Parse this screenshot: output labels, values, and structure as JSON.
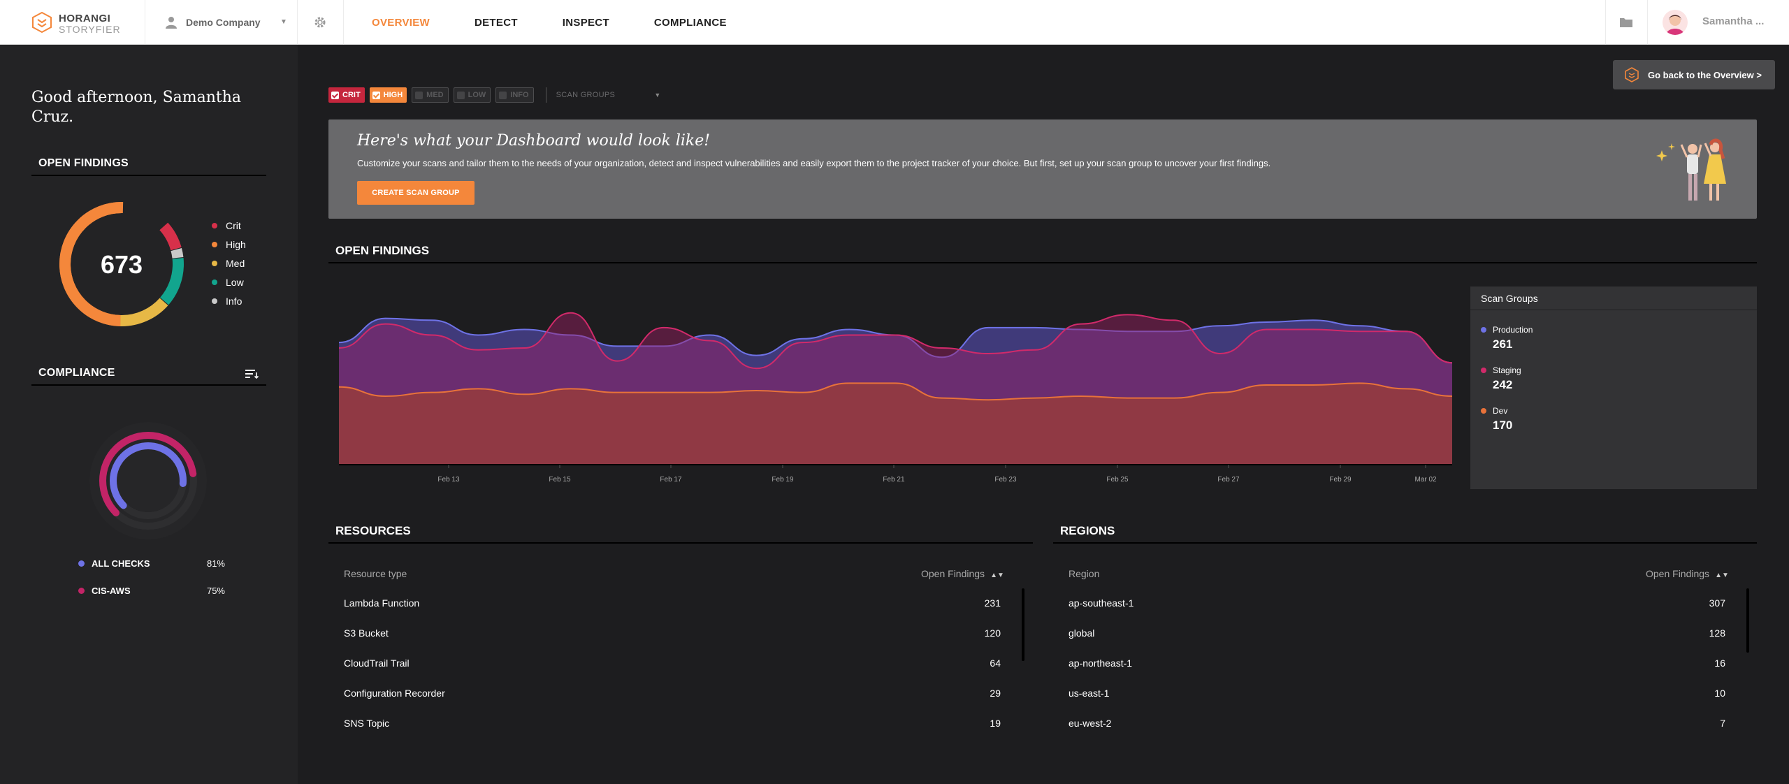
{
  "header": {
    "logo_line1": "HORANGI",
    "logo_line2": "STORYFIER",
    "company": "Demo Company",
    "nav": [
      "OVERVIEW",
      "DETECT",
      "INSPECT",
      "COMPLIANCE"
    ],
    "active_nav": "OVERVIEW",
    "username": "Samantha ..."
  },
  "sidebar": {
    "greeting": "Good afternoon, Samantha Cruz.",
    "open_findings": {
      "title": "OPEN FINDINGS",
      "total": "673",
      "legend": [
        {
          "label": "Crit",
          "color": "#d7304a"
        },
        {
          "label": "High",
          "color": "#f4873b"
        },
        {
          "label": "Med",
          "color": "#e7b846"
        },
        {
          "label": "Low",
          "color": "#12a58e"
        },
        {
          "label": "Info",
          "color": "#c9c9c9"
        }
      ]
    },
    "compliance": {
      "title": "COMPLIANCE",
      "rows": [
        {
          "label": "ALL CHECKS",
          "value": "81%",
          "color": "#6e72e6",
          "fraction": 0.81
        },
        {
          "label": "CIS-AWS",
          "value": "75%",
          "color": "#c32467",
          "fraction": 0.75
        }
      ]
    }
  },
  "main": {
    "go_back": "Go back to the Overview >",
    "filters": {
      "chips": [
        {
          "label": "CRIT",
          "checked": true
        },
        {
          "label": "HIGH",
          "checked": true
        },
        {
          "label": "MED",
          "checked": false
        },
        {
          "label": "LOW",
          "checked": false
        },
        {
          "label": "INFO",
          "checked": false
        }
      ],
      "scan_groups": "SCAN GROUPS"
    },
    "banner": {
      "title": "Here's what your Dashboard would look like!",
      "text": "Customize your scans and tailor them to the needs of your organization, detect and inspect vulnerabilities and easily export them to the project tracker of your choice. But first, set up your scan group to uncover your first findings.",
      "button": "CREATE SCAN GROUP"
    },
    "open_findings_title": "OPEN FINDINGS",
    "scan_groups_box": {
      "title": "Scan Groups",
      "items": [
        {
          "name": "Production",
          "value": "261",
          "color": "#6e72e6"
        },
        {
          "name": "Staging",
          "value": "242",
          "color": "#d12a6a"
        },
        {
          "name": "Dev",
          "value": "170",
          "color": "#e8723a"
        }
      ]
    },
    "resources": {
      "title": "RESOURCES",
      "col1": "Resource type",
      "col2": "Open Findings",
      "rows": [
        {
          "name": "Lambda Function",
          "count": "231"
        },
        {
          "name": "S3 Bucket",
          "count": "120"
        },
        {
          "name": "CloudTrail Trail",
          "count": "64"
        },
        {
          "name": "Configuration Recorder",
          "count": "29"
        },
        {
          "name": "SNS Topic",
          "count": "19"
        }
      ]
    },
    "regions": {
      "title": "REGIONS",
      "col1": "Region",
      "col2": "Open Findings",
      "rows": [
        {
          "name": "ap-southeast-1",
          "count": "307"
        },
        {
          "name": "global",
          "count": "128"
        },
        {
          "name": "ap-northeast-1",
          "count": "16"
        },
        {
          "name": "us-east-1",
          "count": "10"
        },
        {
          "name": "eu-west-2",
          "count": "7"
        }
      ]
    }
  },
  "chart_data": {
    "type": "area",
    "x_ticks": [
      "Feb 13",
      "Feb 15",
      "Feb 17",
      "Feb 19",
      "Feb 21",
      "Feb 23",
      "Feb 25",
      "Feb 27",
      "Feb 29",
      "Mar 02"
    ],
    "series": [
      {
        "name": "Production",
        "color": "#6e72e6",
        "values": [
          0.66,
          0.79,
          0.78,
          0.7,
          0.73,
          0.7,
          0.64,
          0.64,
          0.7,
          0.59,
          0.68,
          0.73,
          0.7,
          0.58,
          0.74,
          0.74,
          0.73,
          0.72,
          0.72,
          0.75,
          0.77,
          0.78,
          0.75,
          0.72,
          0.55
        ]
      },
      {
        "name": "Staging",
        "color": "#d12a6a",
        "values": [
          0.63,
          0.76,
          0.7,
          0.62,
          0.63,
          0.82,
          0.56,
          0.74,
          0.67,
          0.52,
          0.66,
          0.7,
          0.7,
          0.63,
          0.6,
          0.62,
          0.76,
          0.81,
          0.78,
          0.6,
          0.73,
          0.73,
          0.72,
          0.72,
          0.55
        ]
      },
      {
        "name": "Dev",
        "color": "#e8723a",
        "values": [
          0.42,
          0.37,
          0.39,
          0.41,
          0.38,
          0.41,
          0.39,
          0.39,
          0.39,
          0.4,
          0.39,
          0.44,
          0.44,
          0.36,
          0.35,
          0.36,
          0.37,
          0.36,
          0.36,
          0.39,
          0.43,
          0.43,
          0.44,
          0.41,
          0.37
        ]
      }
    ]
  }
}
